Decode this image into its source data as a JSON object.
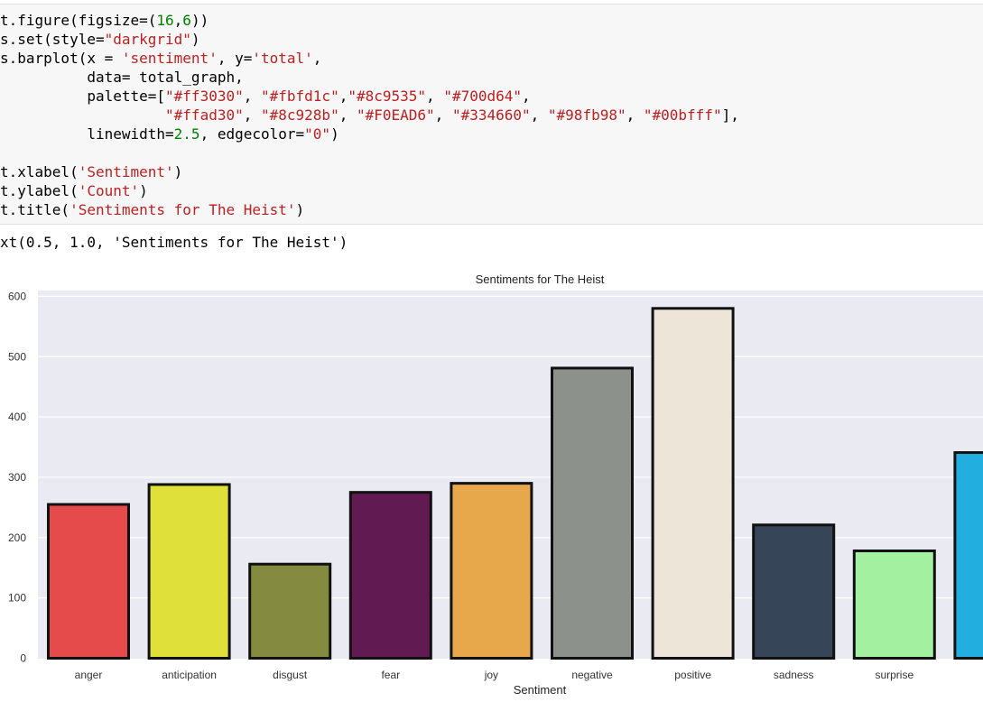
{
  "code": {
    "lines": [
      [
        {
          "t": "t.figure(figsize=("
        },
        {
          "t": "16",
          "c": "num"
        },
        {
          "t": ","
        },
        {
          "t": "6",
          "c": "num"
        },
        {
          "t": "))"
        }
      ],
      [
        {
          "t": "s.set(style="
        },
        {
          "t": "\"darkgrid\"",
          "c": "str"
        },
        {
          "t": ")"
        }
      ],
      [
        {
          "t": "s.barplot(x = "
        },
        {
          "t": "'sentiment'",
          "c": "str"
        },
        {
          "t": ", y="
        },
        {
          "t": "'total'",
          "c": "str"
        },
        {
          "t": ","
        }
      ],
      [
        {
          "t": "          data= total_graph,"
        }
      ],
      [
        {
          "t": "          palette=["
        },
        {
          "t": "\"#ff3030\"",
          "c": "str"
        },
        {
          "t": ", "
        },
        {
          "t": "\"#fbfd1c\"",
          "c": "str"
        },
        {
          "t": ","
        },
        {
          "t": "\"#8c9535\"",
          "c": "str"
        },
        {
          "t": ", "
        },
        {
          "t": "\"#700d64\"",
          "c": "str"
        },
        {
          "t": ","
        }
      ],
      [
        {
          "t": "                   "
        },
        {
          "t": "\"#ffad30\"",
          "c": "str"
        },
        {
          "t": ", "
        },
        {
          "t": "\"#8c928b\"",
          "c": "str"
        },
        {
          "t": ", "
        },
        {
          "t": "\"#F0EAD6\"",
          "c": "str"
        },
        {
          "t": ", "
        },
        {
          "t": "\"#334660\"",
          "c": "str"
        },
        {
          "t": ", "
        },
        {
          "t": "\"#98fb98\"",
          "c": "str"
        },
        {
          "t": ", "
        },
        {
          "t": "\"#00bfff\"",
          "c": "str"
        },
        {
          "t": "],"
        }
      ],
      [
        {
          "t": "          linewidth="
        },
        {
          "t": "2.5",
          "c": "num"
        },
        {
          "t": ", edgecolor="
        },
        {
          "t": "\"0\"",
          "c": "str"
        },
        {
          "t": ")"
        }
      ],
      [
        {
          "t": ""
        }
      ],
      [
        {
          "t": "t.xlabel("
        },
        {
          "t": "'Sentiment'",
          "c": "str"
        },
        {
          "t": ")"
        }
      ],
      [
        {
          "t": "t.ylabel("
        },
        {
          "t": "'Count'",
          "c": "str"
        },
        {
          "t": ")"
        }
      ],
      [
        {
          "t": "t.title("
        },
        {
          "t": "'Sentiments for The Heist'",
          "c": "str"
        },
        {
          "t": ")"
        }
      ]
    ]
  },
  "output": {
    "text": "xt(0.5, 1.0, 'Sentiments for The Heist')"
  },
  "chart_data": {
    "type": "bar",
    "title": "Sentiments for The Heist",
    "xlabel": "Sentiment",
    "ylabel": "",
    "grid": true,
    "ylim": [
      0,
      610
    ],
    "yticks": [
      0,
      100,
      200,
      300,
      400,
      500,
      600
    ],
    "yticklabels": [
      "0",
      "100",
      "200",
      "300",
      "400",
      "500",
      "600"
    ],
    "categories": [
      "anger",
      "anticipation",
      "disgust",
      "fear",
      "joy",
      "negative",
      "positive",
      "sadness",
      "surprise",
      ""
    ],
    "values": [
      255,
      288,
      156,
      275,
      290,
      481,
      580,
      221,
      178,
      341
    ],
    "colors": [
      "#e54b4b",
      "#e0e03a",
      "#848a3f",
      "#611a52",
      "#e6a84b",
      "#8c928b",
      "#ede5d8",
      "#364558",
      "#a3f0a0",
      "#23aee0"
    ]
  }
}
